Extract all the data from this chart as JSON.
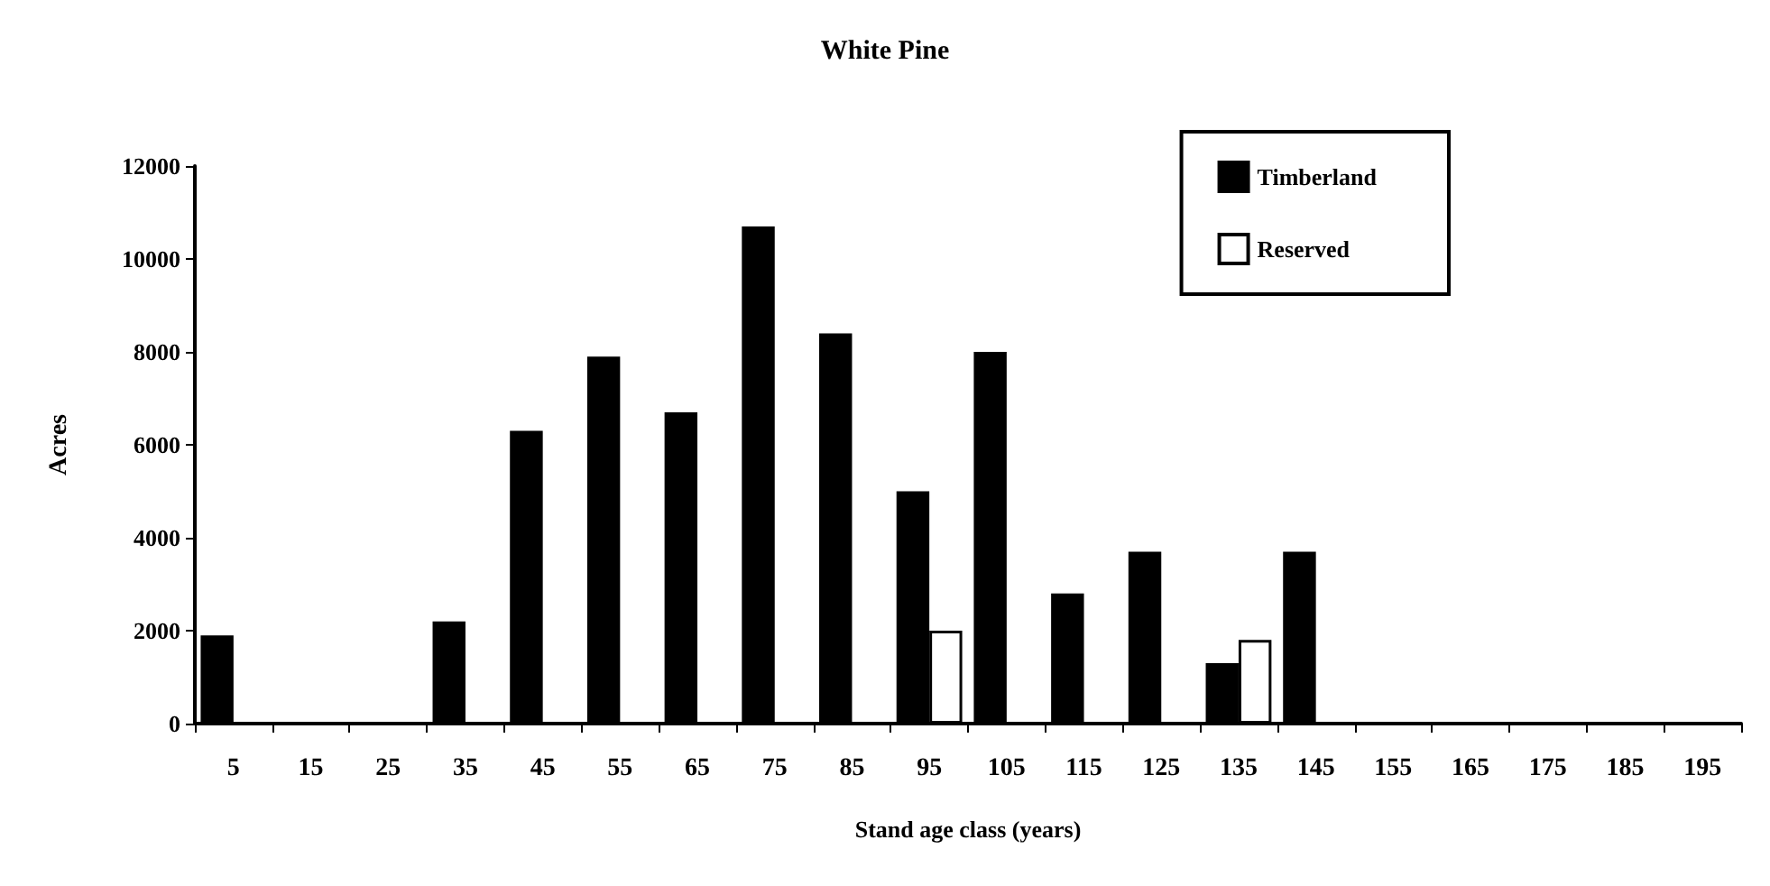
{
  "chart_data": {
    "type": "bar",
    "title": "White Pine",
    "xlabel": "Stand age class (years)",
    "ylabel": "Acres",
    "categories": [
      "5",
      "15",
      "25",
      "35",
      "45",
      "55",
      "65",
      "75",
      "85",
      "95",
      "105",
      "115",
      "125",
      "135",
      "145",
      "155",
      "165",
      "175",
      "185",
      "195"
    ],
    "series": [
      {
        "name": "Timberland",
        "color": "#000000",
        "values": [
          1900,
          0,
          0,
          2200,
          6300,
          7900,
          6700,
          10700,
          8400,
          5000,
          8000,
          2800,
          3700,
          1300,
          3700,
          0,
          0,
          0,
          0,
          0
        ]
      },
      {
        "name": "Reserved",
        "color": "#ffffff",
        "values": [
          0,
          0,
          0,
          0,
          0,
          0,
          0,
          0,
          0,
          2000,
          0,
          0,
          0,
          1800,
          0,
          0,
          0,
          0,
          0,
          0
        ]
      }
    ],
    "ylim": [
      0,
      12000
    ],
    "yticks": [
      0,
      2000,
      4000,
      6000,
      8000,
      10000,
      12000
    ],
    "grid": false,
    "legend": "top right"
  }
}
